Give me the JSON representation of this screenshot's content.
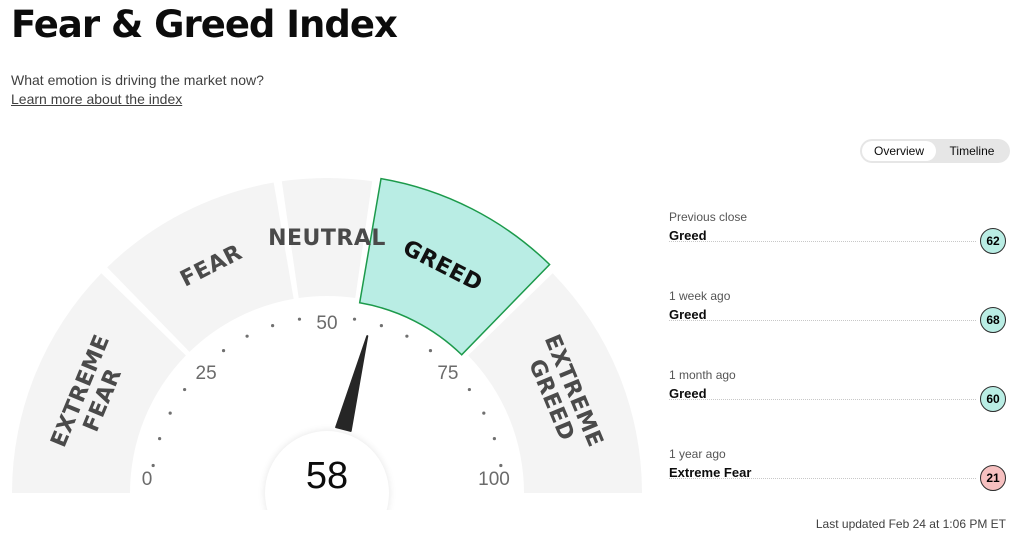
{
  "header": {
    "title": "Fear & Greed Index",
    "subtitle": "What emotion is driving the market now?",
    "learn_link": "Learn more about the index"
  },
  "view_toggle": {
    "tabs": [
      "Overview",
      "Timeline"
    ],
    "active": "Overview"
  },
  "gauge": {
    "value": "58",
    "zones": [
      "EXTREME FEAR",
      "FEAR",
      "NEUTRAL",
      "GREED",
      "EXTREME GREED"
    ],
    "active_zone": "GREED",
    "scale_labels": [
      "0",
      "25",
      "50",
      "75",
      "100"
    ],
    "colors": {
      "zone_fill": "#f4f4f4",
      "active_fill": "#b9ede4",
      "active_stroke": "#1c9a4b",
      "needle": "#262626"
    }
  },
  "history": [
    {
      "label": "Previous close",
      "rating": "Greed",
      "value": "62",
      "color": "#b9ede4"
    },
    {
      "label": "1 week ago",
      "rating": "Greed",
      "value": "68",
      "color": "#b9ede4"
    },
    {
      "label": "1 month ago",
      "rating": "Greed",
      "value": "60",
      "color": "#b9ede4"
    },
    {
      "label": "1 year ago",
      "rating": "Extreme Fear",
      "value": "21",
      "color": "#f6c0c0"
    }
  ],
  "last_updated": "Last updated Feb 24 at 1:06 PM ET"
}
